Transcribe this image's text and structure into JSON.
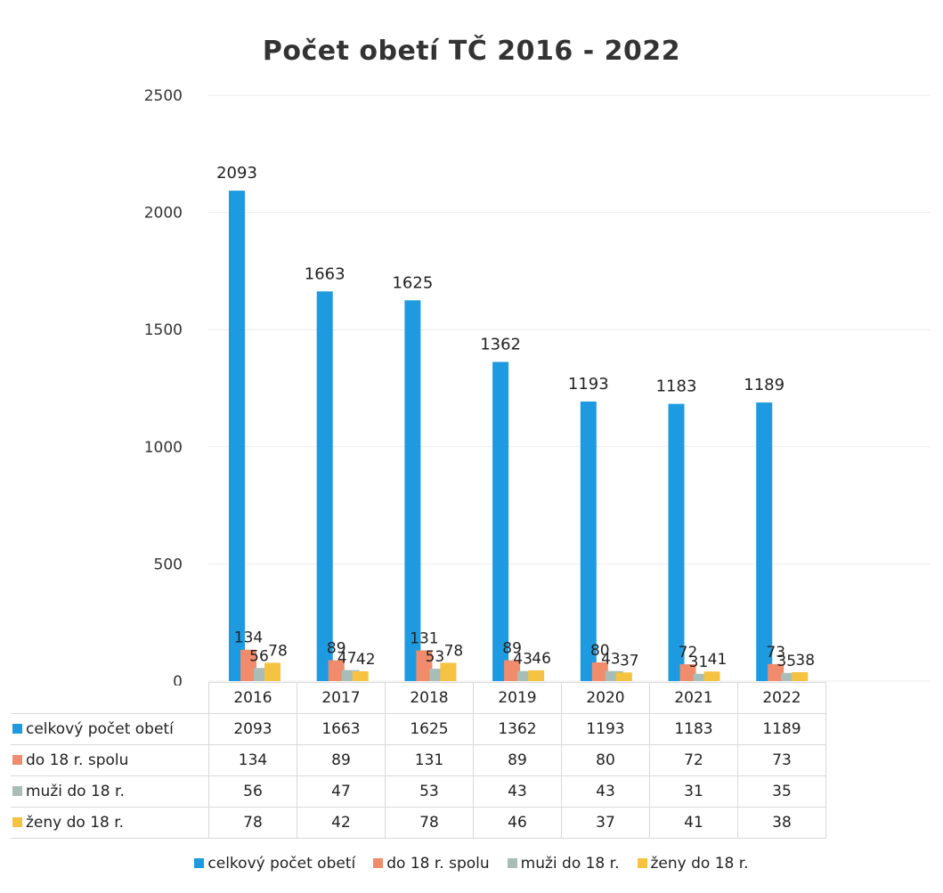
{
  "chart_data": {
    "type": "bar",
    "title": "Počet obetí TČ 2016 - 2022",
    "categories": [
      "2016",
      "2017",
      "2018",
      "2019",
      "2020",
      "2021",
      "2022"
    ],
    "series": [
      {
        "name": "celkový počet obetí",
        "color": "#1e9be0",
        "values": [
          2093,
          1663,
          1625,
          1362,
          1193,
          1183,
          1189
        ]
      },
      {
        "name": "do 18 r. spolu",
        "color": "#f08c6c",
        "values": [
          134,
          89,
          131,
          89,
          80,
          72,
          73
        ]
      },
      {
        "name": "muži do 18 r.",
        "color": "#a9bdb8",
        "values": [
          56,
          47,
          53,
          43,
          43,
          31,
          35
        ]
      },
      {
        "name": "ženy do 18 r.",
        "color": "#f5c242",
        "values": [
          78,
          42,
          78,
          46,
          37,
          41,
          38
        ]
      }
    ],
    "ylim": [
      0,
      2500
    ],
    "yticks": [
      "0",
      "500",
      "1000",
      "1500",
      "2000",
      "2500"
    ],
    "grid": true,
    "data_table": true,
    "legend_position": "bottom"
  }
}
